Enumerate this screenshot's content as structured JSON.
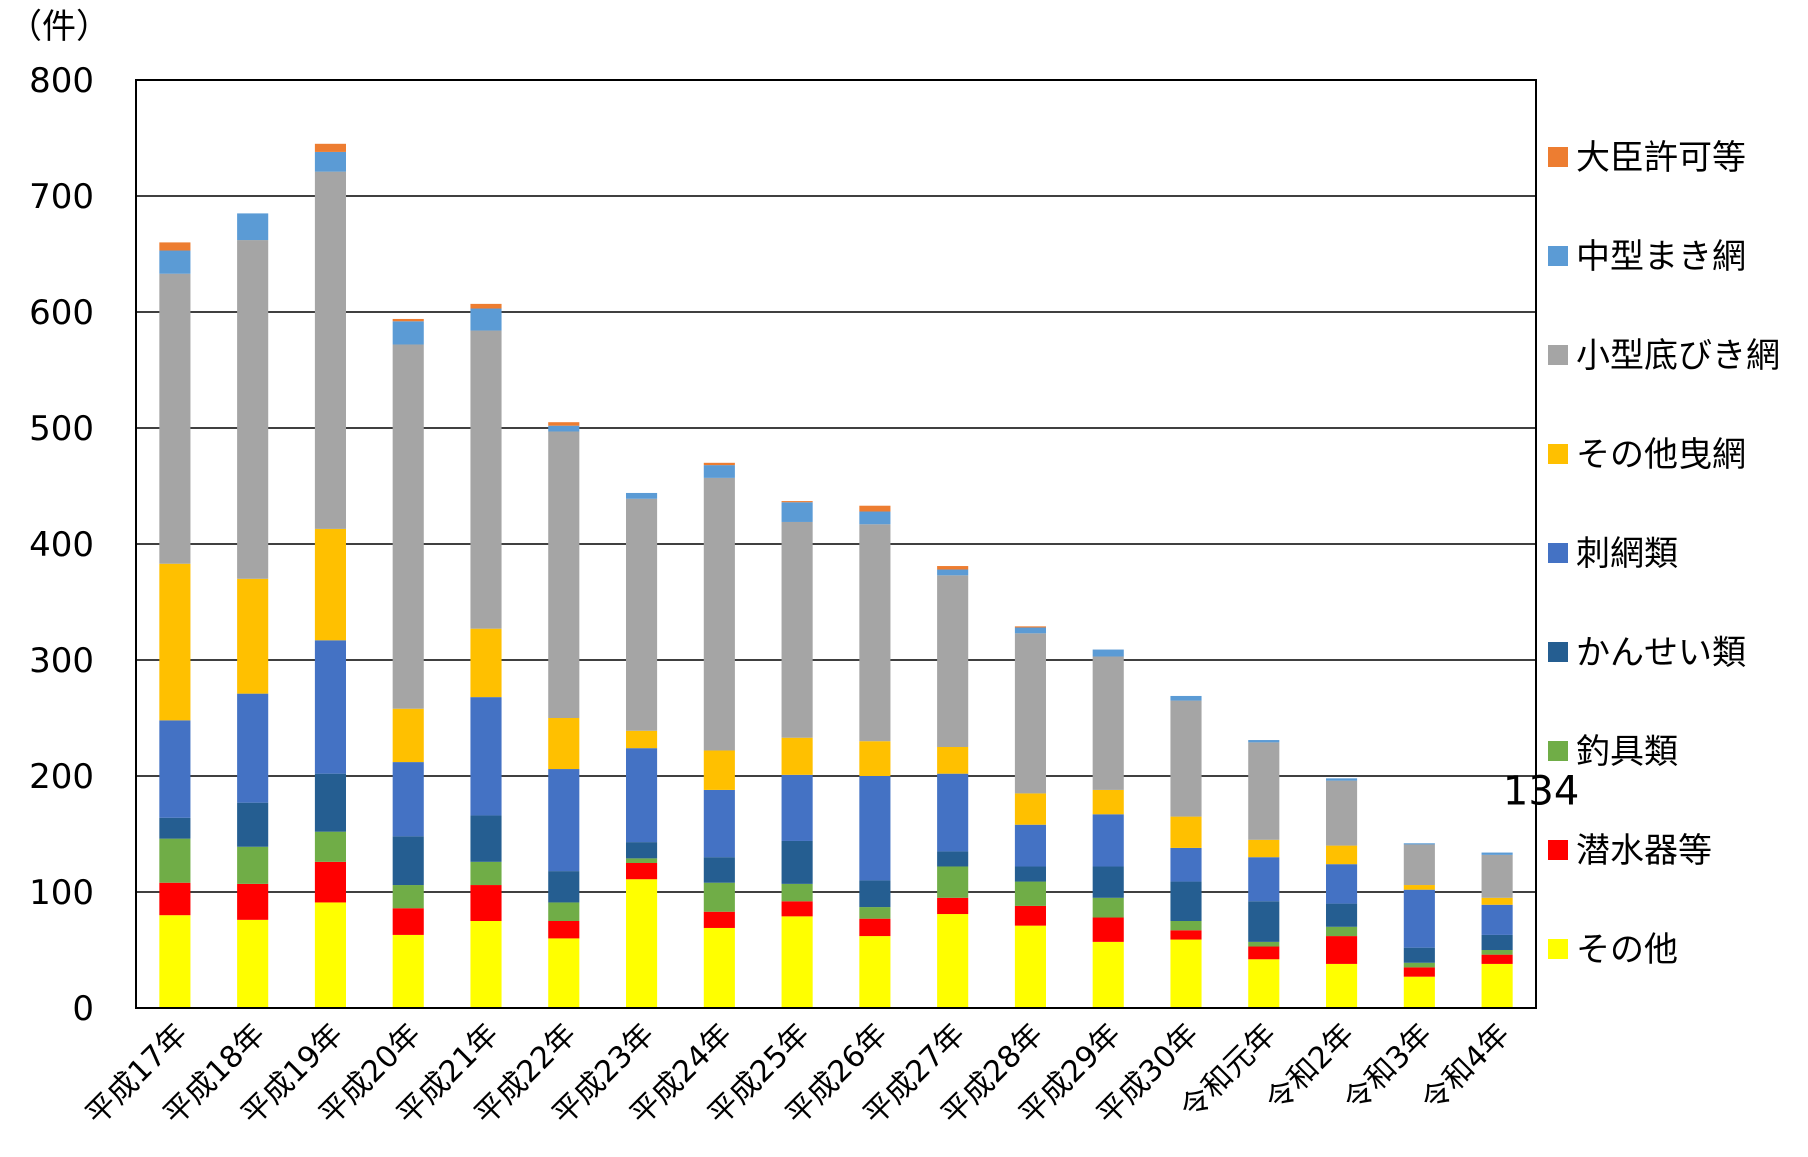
{
  "chart_data": {
    "type": "bar",
    "stacked": true,
    "ylabel": "（件）",
    "ylim": [
      0,
      800
    ],
    "yticks": [
      0,
      100,
      200,
      300,
      400,
      500,
      600,
      700,
      800
    ],
    "grid": true,
    "legend_position": "right",
    "categories": [
      "平成17年",
      "平成18年",
      "平成19年",
      "平成20年",
      "平成21年",
      "平成22年",
      "平成23年",
      "平成24年",
      "平成25年",
      "平成26年",
      "平成27年",
      "平成28年",
      "平成29年",
      "平成30年",
      "令和元年",
      "令和2年",
      "令和3年",
      "令和4年"
    ],
    "series": [
      {
        "name": "その他",
        "color": "#ffff00",
        "values": [
          80,
          76,
          91,
          63,
          75,
          60,
          111,
          69,
          79,
          62,
          81,
          71,
          57,
          59,
          42,
          38,
          27,
          38
        ]
      },
      {
        "name": "潜水器等",
        "color": "#ff0000",
        "values": [
          28,
          31,
          35,
          23,
          31,
          15,
          14,
          14,
          13,
          15,
          14,
          17,
          21,
          8,
          11,
          24,
          8,
          8
        ]
      },
      {
        "name": "釣具類",
        "color": "#70ad47",
        "values": [
          38,
          32,
          26,
          20,
          20,
          16,
          4,
          25,
          15,
          10,
          27,
          21,
          17,
          8,
          4,
          8,
          4,
          4
        ]
      },
      {
        "name": "かんせい類",
        "color": "#255e91",
        "values": [
          18,
          38,
          50,
          42,
          40,
          27,
          14,
          22,
          37,
          23,
          13,
          13,
          27,
          34,
          35,
          20,
          13,
          13
        ]
      },
      {
        "name": "刺網類",
        "color": "#4472c4",
        "values": [
          84,
          94,
          115,
          64,
          102,
          88,
          81,
          58,
          57,
          90,
          67,
          36,
          45,
          29,
          38,
          34,
          50,
          26
        ]
      },
      {
        "name": "その他曳網",
        "color": "#ffc000",
        "values": [
          135,
          99,
          96,
          46,
          59,
          44,
          15,
          34,
          32,
          30,
          23,
          27,
          21,
          27,
          15,
          16,
          4,
          6
        ]
      },
      {
        "name": "小型底びき網",
        "color": "#a5a5a5",
        "values": [
          250,
          292,
          308,
          314,
          257,
          247,
          200,
          235,
          186,
          187,
          148,
          138,
          115,
          100,
          84,
          56,
          35,
          37
        ]
      },
      {
        "name": "中型まき網",
        "color": "#5b9bd5",
        "values": [
          20,
          23,
          17,
          20,
          19,
          5,
          5,
          11,
          17,
          11,
          5,
          5,
          6,
          4,
          2,
          2,
          1,
          2
        ]
      },
      {
        "name": "大臣許可等",
        "color": "#ed7d31",
        "values": [
          7,
          0,
          7,
          2,
          4,
          3,
          0,
          2,
          1,
          5,
          3,
          1,
          0,
          0,
          0,
          0,
          0,
          0
        ]
      }
    ],
    "annotations": [
      {
        "category": "令和4年",
        "text": "134"
      }
    ]
  }
}
